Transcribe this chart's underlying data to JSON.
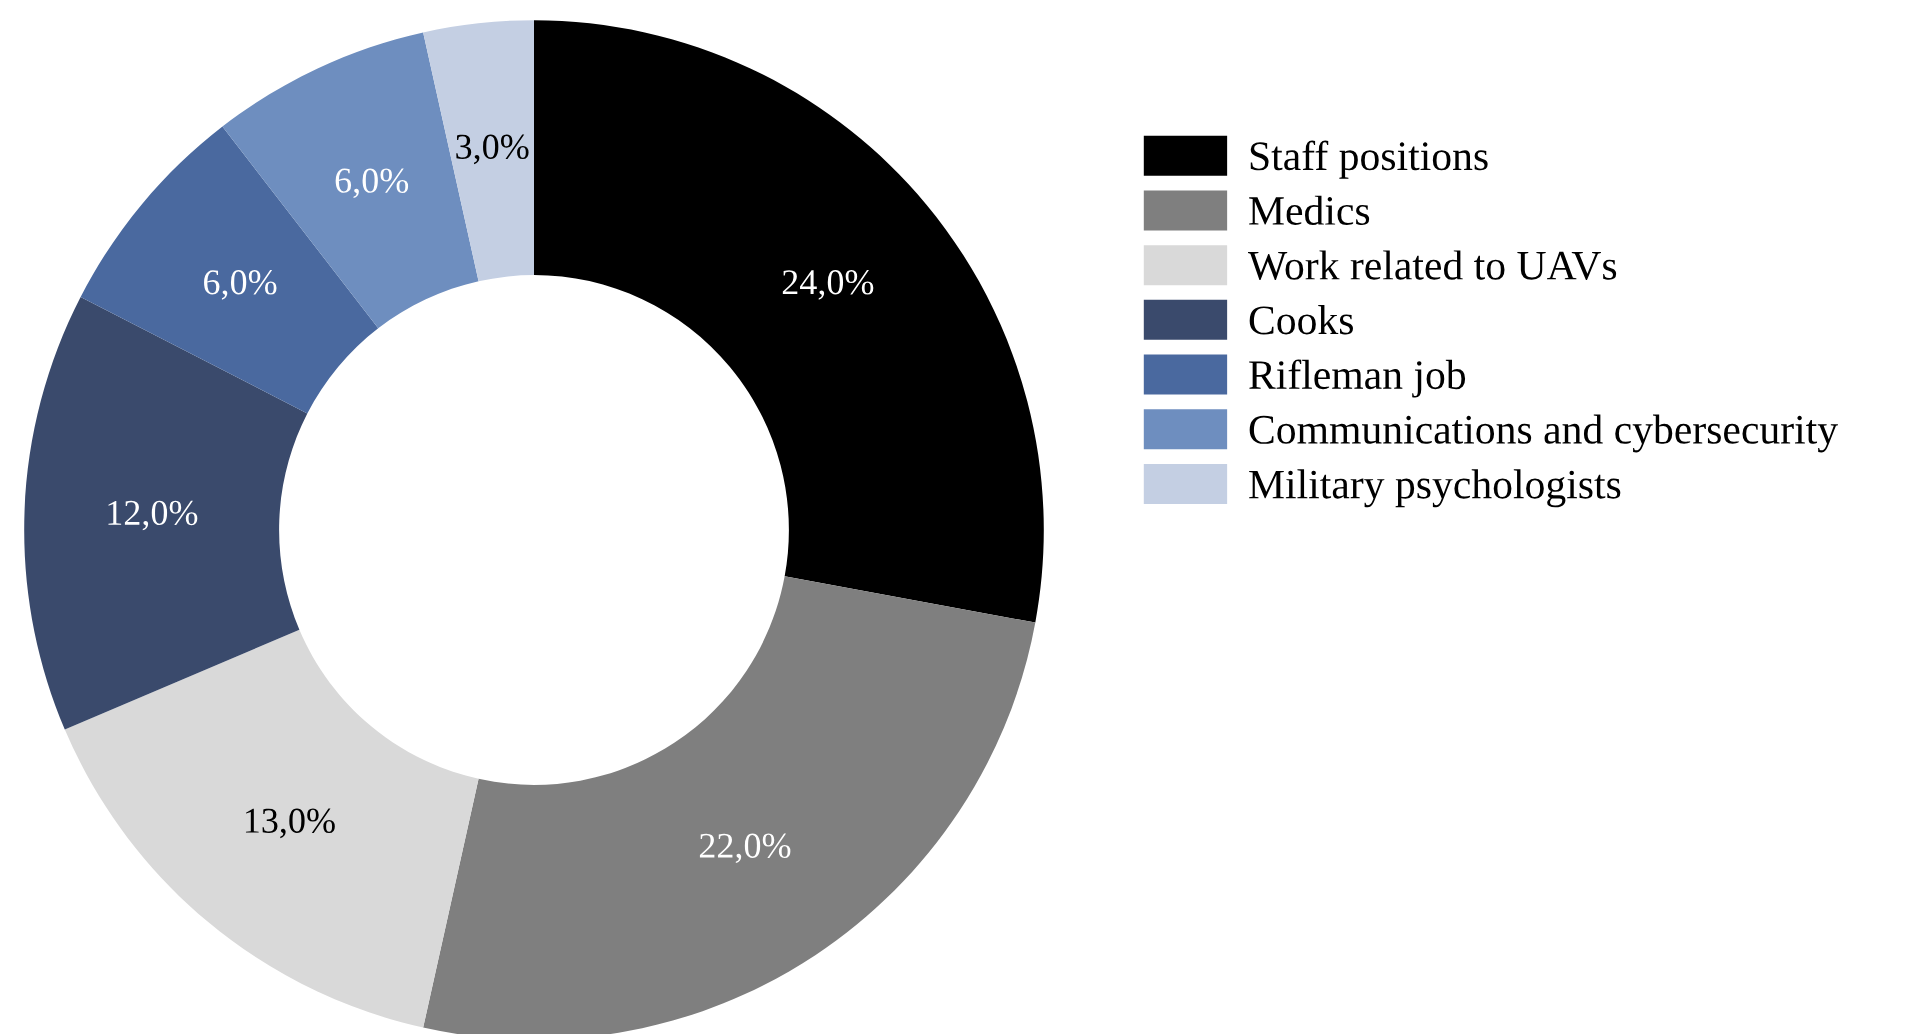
{
  "chart_data": {
    "type": "donut",
    "categories": [
      "Staff positions",
      "Medics",
      "Work related to UAVs",
      "Cooks",
      "Rifleman job",
      "Communications and cybersecurity",
      "Military psychologists"
    ],
    "values": [
      24.0,
      22.0,
      13.0,
      12.0,
      6.0,
      6.0,
      3.0
    ],
    "value_labels": [
      "24,0%",
      "22,0%",
      "13,0%",
      "12,0%",
      "6,0%",
      "6,0%",
      "3,0%"
    ],
    "colors": [
      "#000000",
      "#7f7f7f",
      "#d9d9d9",
      "#3a4a6c",
      "#4a699f",
      "#6e8ebf",
      "#c4cfe3"
    ],
    "legend": "right"
  }
}
